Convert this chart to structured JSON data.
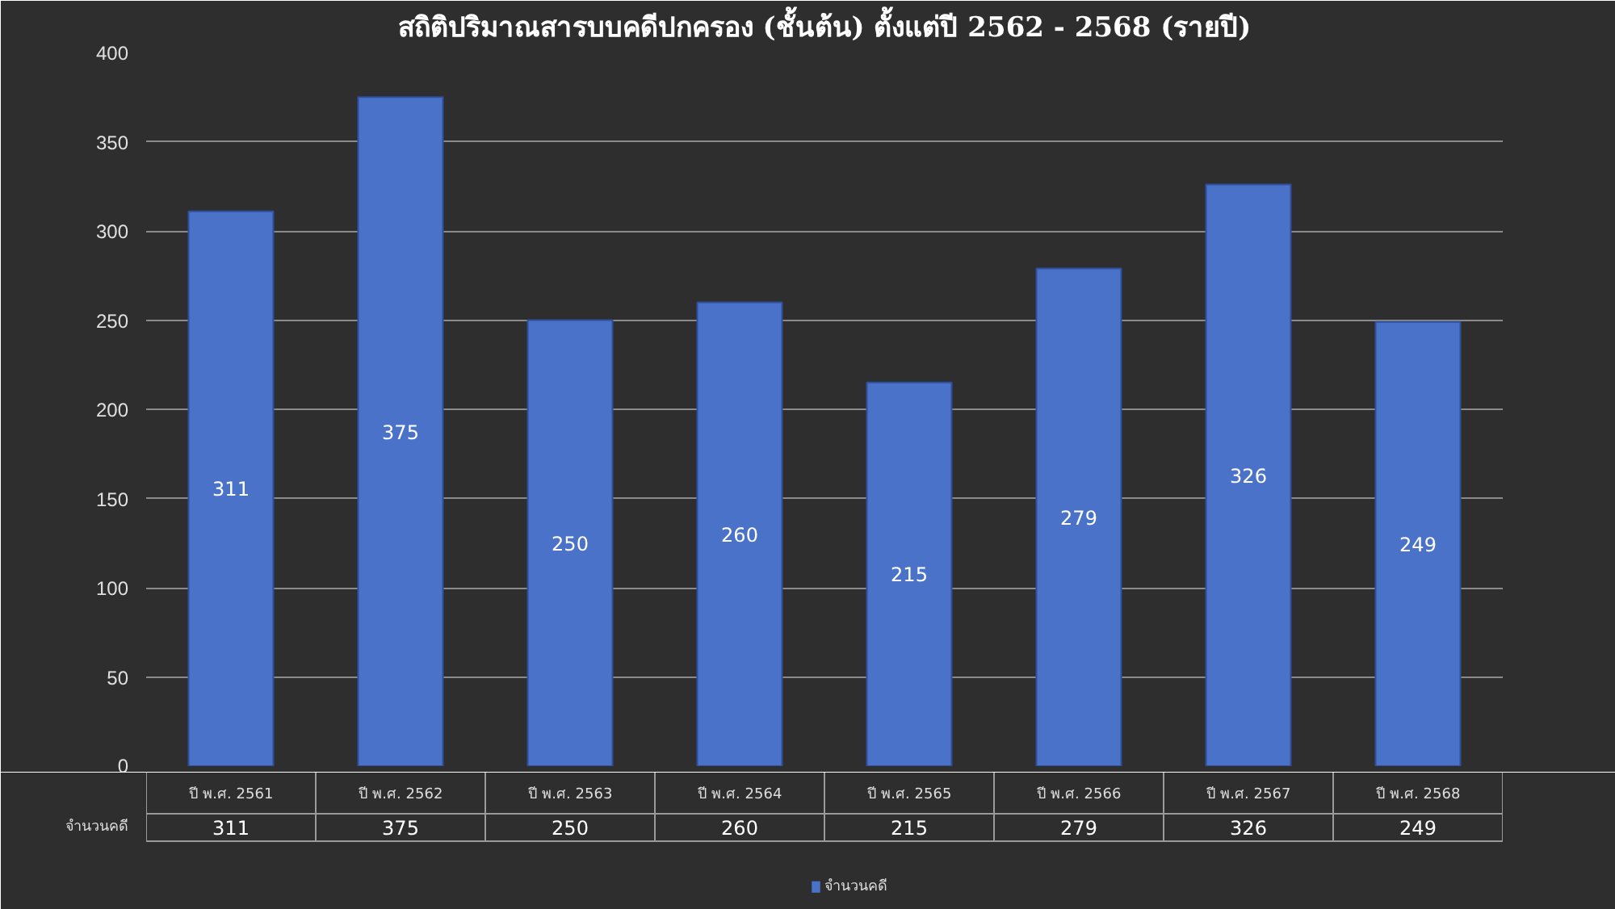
{
  "chart_data": {
    "type": "bar",
    "title": "สถิติปริมาณสารบบคดีปกครอง (ชั้นต้น) ตั้งแต่ปี 2562 - 2568 (รายปี)",
    "categories": [
      "ปี พ.ศ. 2561",
      "ปี พ.ศ. 2562",
      "ปี พ.ศ. 2563",
      "ปี พ.ศ. 2564",
      "ปี พ.ศ. 2565",
      "ปี พ.ศ. 2566",
      "ปี พ.ศ. 2567",
      "ปี พ.ศ. 2568"
    ],
    "series": [
      {
        "name": "จำนวนคดี",
        "color": "#4a72c8",
        "values": [
          311,
          375,
          250,
          260,
          215,
          279,
          326,
          249
        ]
      }
    ],
    "annotations": [
      "311",
      "375",
      "250",
      "260",
      "215",
      "279",
      "326",
      "249"
    ],
    "ylim": [
      0,
      400
    ],
    "yticks": [
      0,
      50,
      100,
      150,
      200,
      250,
      300,
      350,
      400
    ],
    "grid": "y",
    "data_labels": true,
    "legend": "bottom"
  }
}
